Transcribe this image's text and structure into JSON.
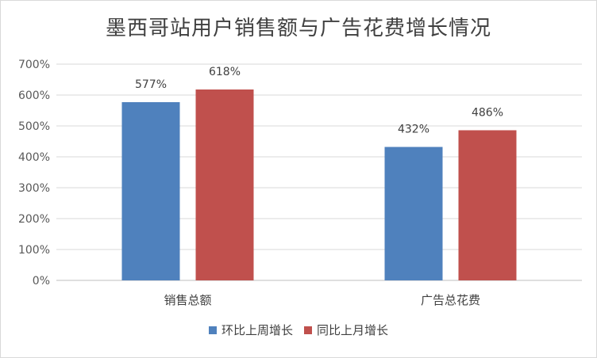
{
  "chart_data": {
    "type": "bar",
    "title": "墨西哥站用户销售额与广告花费增长情况",
    "categories": [
      "销售总额",
      "广告总花费"
    ],
    "series": [
      {
        "name": "环比上周增长",
        "values": [
          577,
          432
        ],
        "labels": [
          "577%",
          "432%"
        ],
        "color": "#4f81bd"
      },
      {
        "name": "同比上月增长",
        "values": [
          618,
          486
        ],
        "labels": [
          "618%",
          "486%"
        ],
        "color": "#c0504d"
      }
    ],
    "ylim": [
      0,
      700
    ],
    "yticks": [
      0,
      100,
      200,
      300,
      400,
      500,
      600,
      700
    ],
    "ytick_labels": [
      "0%",
      "100%",
      "200%",
      "300%",
      "400%",
      "500%",
      "600%",
      "700%"
    ],
    "grid": true,
    "legend": "bottom"
  }
}
